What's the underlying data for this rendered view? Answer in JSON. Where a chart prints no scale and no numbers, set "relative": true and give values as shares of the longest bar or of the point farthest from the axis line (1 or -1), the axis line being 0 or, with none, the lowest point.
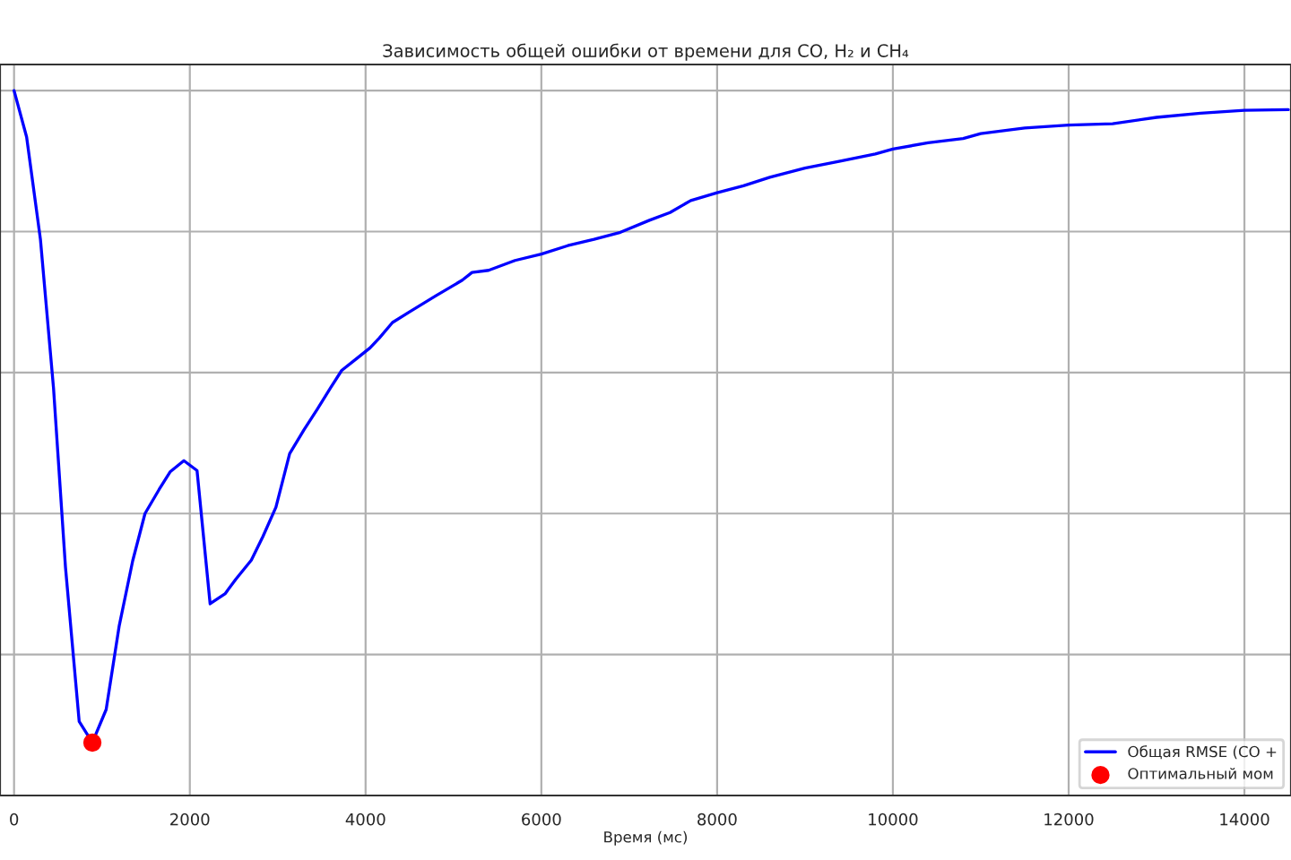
{
  "chart_data": {
    "type": "line",
    "title": "Зависимость общей ошибки от времени для CO, H₂ и CH₄",
    "xlabel": "Время (мс)",
    "relative": true,
    "xlim": [
      -160,
      14530
    ],
    "xticks": [
      0,
      2000,
      4000,
      6000,
      8000,
      10000,
      12000,
      14000
    ],
    "grid": true,
    "legend": "bottom right",
    "series": [
      {
        "name": "Общая RMSE (CO +",
        "color": "#0000ff",
        "x": [
          0,
          143,
          300,
          449,
          585,
          741,
          891,
          1048,
          1197,
          1350,
          1490,
          1650,
          1775,
          1932,
          2082,
          2231,
          2400,
          2524,
          2700,
          2830,
          2980,
          3136,
          3300,
          3450,
          3600,
          3728,
          3900,
          4050,
          4156,
          4306,
          4500,
          4800,
          5100,
          5211,
          5400,
          5700,
          6000,
          6300,
          6600,
          6900,
          7230,
          7464,
          7700,
          8000,
          8300,
          8600,
          9000,
          9400,
          9800,
          10000,
          10400,
          10800,
          11000,
          11500,
          12000,
          12500,
          13000,
          13500,
          14000,
          14500
        ],
        "values": [
          1.0,
          0.934,
          0.789,
          0.578,
          0.324,
          0.105,
          0.075,
          0.122,
          0.241,
          0.333,
          0.4,
          0.434,
          0.459,
          0.475,
          0.461,
          0.272,
          0.286,
          0.307,
          0.334,
          0.367,
          0.409,
          0.485,
          0.519,
          0.548,
          0.578,
          0.603,
          0.62,
          0.635,
          0.649,
          0.671,
          0.686,
          0.709,
          0.731,
          0.742,
          0.745,
          0.759,
          0.768,
          0.78,
          0.789,
          0.799,
          0.816,
          0.827,
          0.844,
          0.855,
          0.865,
          0.877,
          0.89,
          0.9,
          0.91,
          0.917,
          0.926,
          0.932,
          0.939,
          0.947,
          0.951,
          0.953,
          0.962,
          0.968,
          0.972,
          0.973
        ]
      },
      {
        "name": "Оптимальный мом",
        "type": "scatter",
        "color": "#ff0000",
        "x": [
          891
        ],
        "values": [
          0.075
        ]
      }
    ]
  }
}
